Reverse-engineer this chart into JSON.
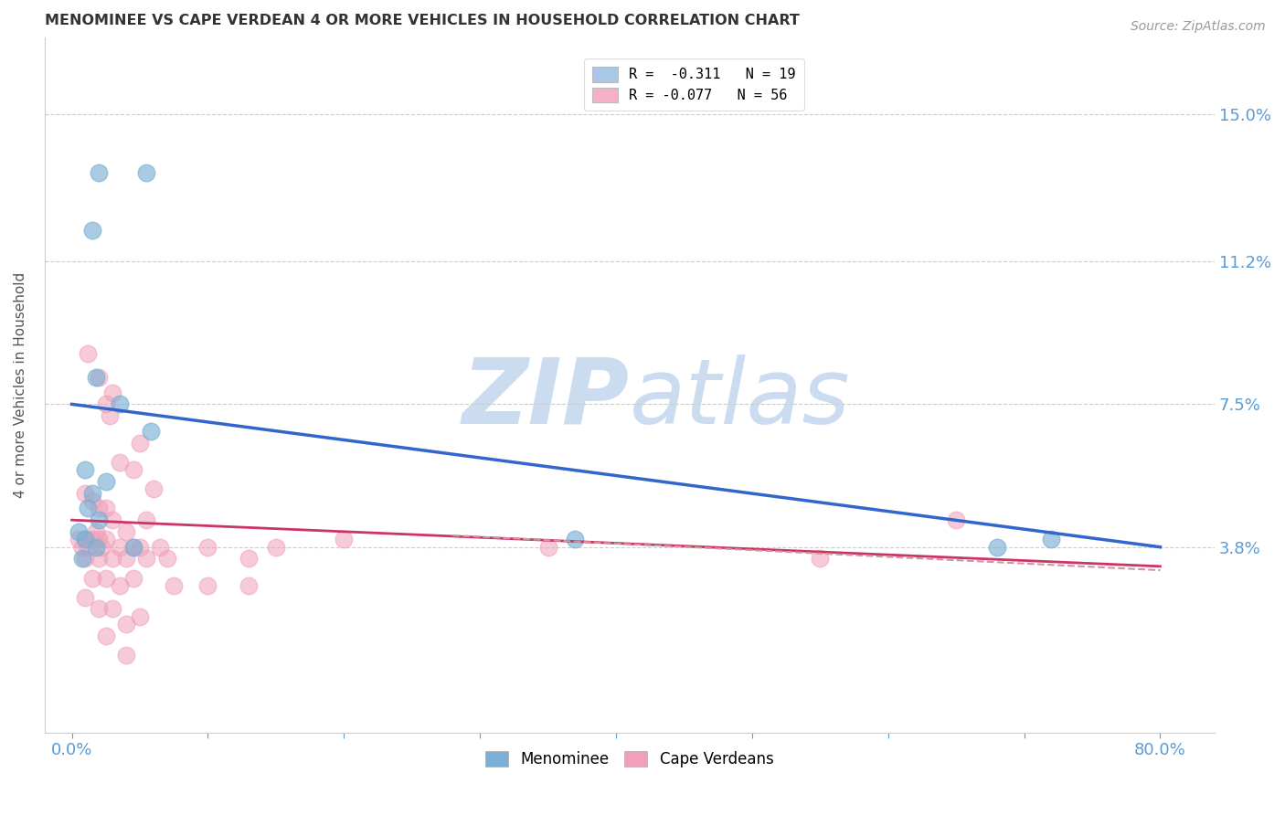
{
  "title": "MENOMINEE VS CAPE VERDEAN 4 OR MORE VEHICLES IN HOUSEHOLD CORRELATION CHART",
  "source": "Source: ZipAtlas.com",
  "xlabel_ticks": [
    "0.0%",
    "80.0%"
  ],
  "xlabel_tick_vals": [
    0.0,
    80.0
  ],
  "ylabel": "4 or more Vehicles in Household",
  "ylabel_ticks": [
    "3.8%",
    "7.5%",
    "11.2%",
    "15.0%"
  ],
  "ylabel_tick_vals": [
    3.8,
    7.5,
    11.2,
    15.0
  ],
  "xlim": [
    -2.0,
    84
  ],
  "ylim": [
    -1.0,
    17.0
  ],
  "legend_entries": [
    {
      "label": "R =  -0.311   N = 19",
      "color": "#a8c8e8"
    },
    {
      "label": "R = -0.077   N = 56",
      "color": "#f5b0c8"
    }
  ],
  "legend_bottom": [
    "Menominee",
    "Cape Verdeans"
  ],
  "menominee_color": "#7bafd4",
  "cape_verdean_color": "#f0a0b8",
  "menominee_line_color": "#3366cc",
  "cape_verdean_line_color": "#cc3366",
  "dashed_line_color": "#cc9999",
  "title_color": "#333333",
  "axis_color": "#5b9bd5",
  "gridline_color": "#cccccc",
  "watermark_color": "#ccdcf0",
  "menominee_dots": [
    [
      2.0,
      13.5
    ],
    [
      5.5,
      13.5
    ],
    [
      1.5,
      12.0
    ],
    [
      1.8,
      8.2
    ],
    [
      3.5,
      7.5
    ],
    [
      5.8,
      6.8
    ],
    [
      1.0,
      5.8
    ],
    [
      2.5,
      5.5
    ],
    [
      1.5,
      5.2
    ],
    [
      1.2,
      4.8
    ],
    [
      2.0,
      4.5
    ],
    [
      0.5,
      4.2
    ],
    [
      1.0,
      4.0
    ],
    [
      1.8,
      3.8
    ],
    [
      0.8,
      3.5
    ],
    [
      4.5,
      3.8
    ],
    [
      37.0,
      4.0
    ],
    [
      68.0,
      3.8
    ],
    [
      72.0,
      4.0
    ]
  ],
  "cape_verdean_dots": [
    [
      1.2,
      8.8
    ],
    [
      2.0,
      8.2
    ],
    [
      2.5,
      7.5
    ],
    [
      3.0,
      7.8
    ],
    [
      2.8,
      7.2
    ],
    [
      5.0,
      6.5
    ],
    [
      4.5,
      5.8
    ],
    [
      3.5,
      6.0
    ],
    [
      6.0,
      5.3
    ],
    [
      1.0,
      5.2
    ],
    [
      1.5,
      5.0
    ],
    [
      2.0,
      4.8
    ],
    [
      2.5,
      4.8
    ],
    [
      3.0,
      4.5
    ],
    [
      1.8,
      4.2
    ],
    [
      4.0,
      4.2
    ],
    [
      5.5,
      4.5
    ],
    [
      0.5,
      4.0
    ],
    [
      1.0,
      4.0
    ],
    [
      1.5,
      4.0
    ],
    [
      2.0,
      4.0
    ],
    [
      2.5,
      4.0
    ],
    [
      0.8,
      3.8
    ],
    [
      1.2,
      3.8
    ],
    [
      2.2,
      3.8
    ],
    [
      3.5,
      3.8
    ],
    [
      4.5,
      3.8
    ],
    [
      5.0,
      3.8
    ],
    [
      6.5,
      3.8
    ],
    [
      1.0,
      3.5
    ],
    [
      2.0,
      3.5
    ],
    [
      3.0,
      3.5
    ],
    [
      4.0,
      3.5
    ],
    [
      5.5,
      3.5
    ],
    [
      7.0,
      3.5
    ],
    [
      10.0,
      3.8
    ],
    [
      13.0,
      3.5
    ],
    [
      15.0,
      3.8
    ],
    [
      20.0,
      4.0
    ],
    [
      1.5,
      3.0
    ],
    [
      2.5,
      3.0
    ],
    [
      3.5,
      2.8
    ],
    [
      4.5,
      3.0
    ],
    [
      7.5,
      2.8
    ],
    [
      10.0,
      2.8
    ],
    [
      13.0,
      2.8
    ],
    [
      1.0,
      2.5
    ],
    [
      2.0,
      2.2
    ],
    [
      3.0,
      2.2
    ],
    [
      4.0,
      1.8
    ],
    [
      5.0,
      2.0
    ],
    [
      2.5,
      1.5
    ],
    [
      4.0,
      1.0
    ],
    [
      35.0,
      3.8
    ],
    [
      55.0,
      3.5
    ],
    [
      65.0,
      4.5
    ]
  ],
  "menominee_regression": {
    "x_start": 0,
    "y_start": 7.5,
    "x_end": 80,
    "y_end": 3.8
  },
  "cape_verdean_regression": {
    "x_start": 0,
    "y_start": 4.5,
    "x_end": 80,
    "y_end": 3.3
  },
  "dashed_regression": {
    "x_start": 28,
    "y_start": 4.1,
    "x_end": 80,
    "y_end": 3.2
  }
}
